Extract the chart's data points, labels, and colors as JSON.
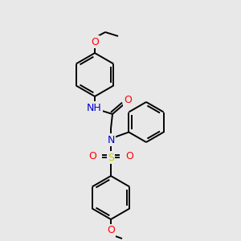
{
  "bg_color": "#e8e8e8",
  "bond_color": "#000000",
  "atom_colors": {
    "O": "#ff0000",
    "N": "#0000cc",
    "S": "#cccc00",
    "H": "#666666",
    "C": "#000000"
  },
  "figsize": [
    3.0,
    3.0
  ],
  "dpi": 100,
  "lw": 1.4,
  "ring_r": 26,
  "fs": 9.0
}
